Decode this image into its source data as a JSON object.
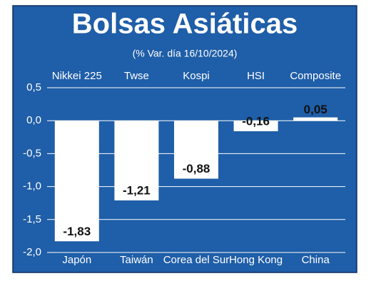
{
  "chart_data": {
    "type": "bar",
    "title": "Bolsas Asiáticas",
    "subtitle": "(% Var. día 16/10/2024)",
    "categories": [
      "Japón",
      "Taiwán",
      "Corea del Sur",
      "Hong Kong",
      "China"
    ],
    "index_names": [
      "Nikkei 225",
      "Twse",
      "Kospi",
      "HSI",
      "Composite"
    ],
    "values": [
      -1.83,
      -1.21,
      -0.88,
      -0.16,
      0.05
    ],
    "value_labels": [
      "-1,83",
      "-1,21",
      "-0,88",
      "-0,16",
      "0,05"
    ],
    "color": "#ffffff",
    "background": "#1f5ea8",
    "ylim": [
      -2.0,
      0.5
    ],
    "yticks": [
      {
        "value": 0.5,
        "label": "0,5"
      },
      {
        "value": 0,
        "label": "0,0"
      },
      {
        "value": -0.5,
        "label": "-0,5"
      },
      {
        "value": -1.0,
        "label": "-1,0"
      },
      {
        "value": -1.5,
        "label": "-1,5"
      },
      {
        "value": -2.0,
        "label": "-2,0"
      }
    ],
    "grid": true
  }
}
